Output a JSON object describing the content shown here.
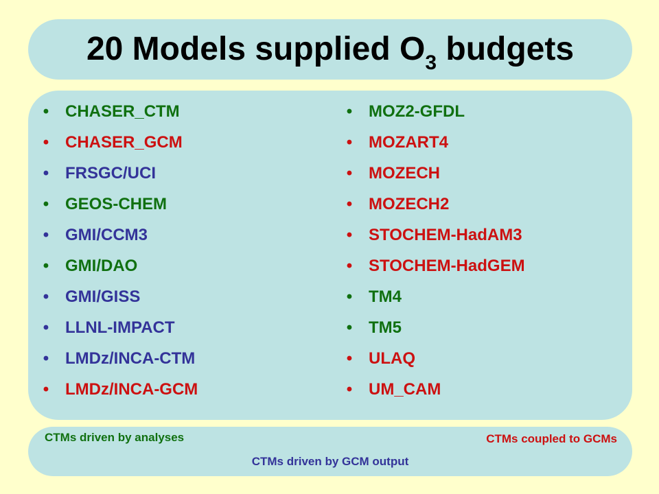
{
  "title": {
    "main": "20 Models supplied O",
    "subscript": "3",
    "rest": " budgets"
  },
  "colors": {
    "background": "#FFFFCC",
    "panel": "#BDE3E3",
    "green": "#107010",
    "red": "#CC1111",
    "blue": "#333399"
  },
  "models_left": [
    {
      "name": "CHASER_CTM",
      "category": "green"
    },
    {
      "name": "CHASER_GCM",
      "category": "red"
    },
    {
      "name": "FRSGC/UCI",
      "category": "blue"
    },
    {
      "name": "GEOS-CHEM",
      "category": "green"
    },
    {
      "name": "GMI/CCM3",
      "category": "blue"
    },
    {
      "name": "GMI/DAO",
      "category": "green"
    },
    {
      "name": "GMI/GISS",
      "category": "blue"
    },
    {
      "name": "LLNL-IMPACT",
      "category": "blue"
    },
    {
      "name": "LMDz/INCA-CTM",
      "category": "blue"
    },
    {
      "name": "LMDz/INCA-GCM",
      "category": "red"
    }
  ],
  "models_right": [
    {
      "name": "MOZ2-GFDL",
      "category": "green"
    },
    {
      "name": "MOZART4",
      "category": "red"
    },
    {
      "name": "MOZECH",
      "category": "red"
    },
    {
      "name": "MOZECH2",
      "category": "red"
    },
    {
      "name": "STOCHEM-HadAM3",
      "category": "red"
    },
    {
      "name": "STOCHEM-HadGEM",
      "category": "red"
    },
    {
      "name": "TM4",
      "category": "green"
    },
    {
      "name": "TM5",
      "category": "green"
    },
    {
      "name": "ULAQ",
      "category": "red"
    },
    {
      "name": "UM_CAM",
      "category": "red"
    }
  ],
  "legend": {
    "analyses": "CTMs driven by analyses",
    "coupled": "CTMs coupled to GCMs",
    "gcm_output": "CTMs driven by GCM output"
  }
}
